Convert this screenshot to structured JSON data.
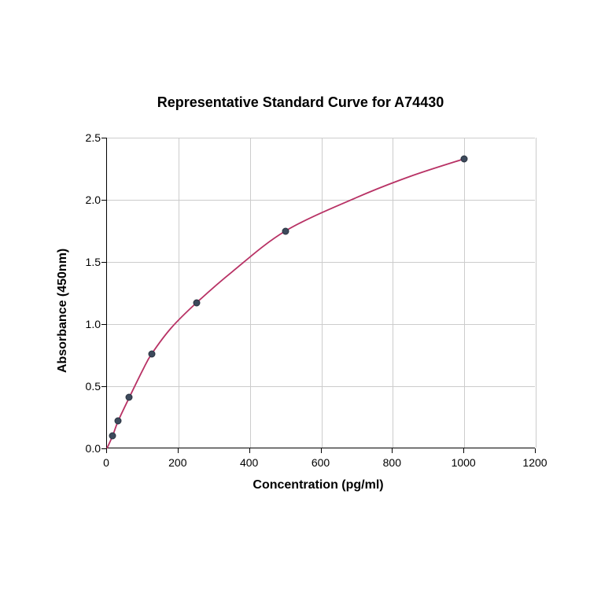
{
  "chart": {
    "type": "scatter",
    "title": "Representative Standard Curve for A74430",
    "title_fontsize": 18,
    "title_fontweight": "bold",
    "xlabel": "Concentration (pg/ml)",
    "ylabel": "Absorbance (450nm)",
    "label_fontsize": 16,
    "label_fontweight": "bold",
    "tick_fontsize": 14,
    "background_color": "#ffffff",
    "grid_color": "#cccccc",
    "axis_color": "#000000",
    "xlim": [
      0,
      1200
    ],
    "ylim": [
      0,
      2.5
    ],
    "xticks": [
      0,
      200,
      400,
      600,
      800,
      1000,
      1200
    ],
    "yticks": [
      0.0,
      0.5,
      1.0,
      1.5,
      2.0,
      2.5
    ],
    "data_points": {
      "x": [
        15.6,
        31.25,
        62.5,
        125,
        250,
        500,
        1000
      ],
      "y": [
        0.1,
        0.22,
        0.41,
        0.76,
        1.17,
        1.75,
        2.33
      ]
    },
    "marker_color": "#3d4a5c",
    "marker_edge_color": "#2a3340",
    "marker_size": 9,
    "line_color": "#b83265",
    "line_width": 1.8,
    "curve_points": {
      "x": [
        0,
        15.6,
        31.25,
        62.5,
        100,
        125,
        180,
        250,
        350,
        500,
        700,
        850,
        1000
      ],
      "y": [
        0.0,
        0.1,
        0.22,
        0.41,
        0.63,
        0.76,
        0.97,
        1.17,
        1.42,
        1.75,
        2.02,
        2.19,
        2.33
      ]
    }
  }
}
